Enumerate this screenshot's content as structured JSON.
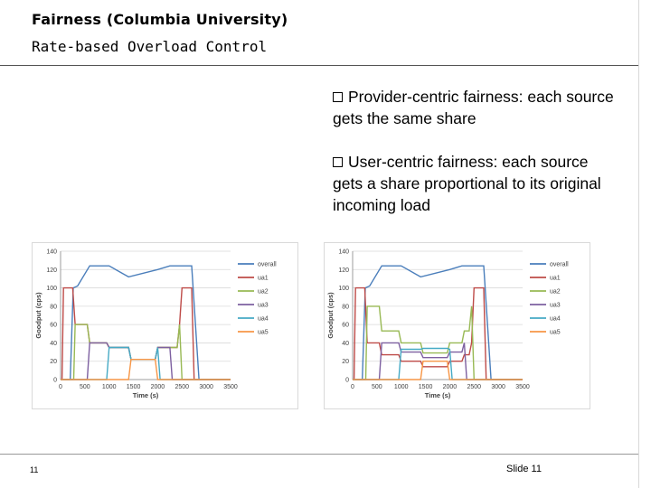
{
  "slide": {
    "title": "Fairness (Columbia University)",
    "subtitle": "Rate-based Overload Control",
    "page_number": "11",
    "slide_label": "Slide 11"
  },
  "bullets": [
    {
      "text": "Provider-centric fairness: each source gets the same share"
    },
    {
      "text": "User-centric fairness: each source gets a share proportional to its original incoming load"
    }
  ],
  "colors": {
    "overall": "#4a7ebb",
    "ua1": "#be4b48",
    "ua2": "#98b954",
    "ua3": "#7d60a0",
    "ua4": "#46aac5",
    "ua5": "#f79646"
  },
  "chart_data": [
    {
      "type": "line",
      "xlabel": "Time (s)",
      "ylabel": "Goodput (cps)",
      "xlim": [
        0,
        3500
      ],
      "ylim": [
        0,
        140
      ],
      "x_ticks": [
        "0",
        "500",
        "1000",
        "1500",
        "2000",
        "2500",
        "3000",
        "3500"
      ],
      "y_ticks": [
        "0",
        "20",
        "40",
        "60",
        "80",
        "100",
        "120",
        "140"
      ],
      "grid": true,
      "legend": "right",
      "series": [
        {
          "name": "overall",
          "color": "#4a7ebb",
          "points": [
            [
              0,
              0
            ],
            [
              200,
              0
            ],
            [
              260,
              100
            ],
            [
              350,
              102
            ],
            [
              600,
              124
            ],
            [
              1000,
              124
            ],
            [
              1400,
              112
            ],
            [
              2000,
              120
            ],
            [
              2250,
              124
            ],
            [
              2700,
              124
            ],
            [
              2850,
              0
            ],
            [
              3500,
              0
            ]
          ]
        },
        {
          "name": "ua1",
          "color": "#be4b48",
          "points": [
            [
              0,
              0
            ],
            [
              30,
              0
            ],
            [
              60,
              100
            ],
            [
              250,
              100
            ],
            [
              300,
              60
            ],
            [
              550,
              60
            ],
            [
              600,
              40
            ],
            [
              950,
              40
            ],
            [
              1000,
              35
            ],
            [
              1400,
              35
            ],
            [
              1450,
              22
            ],
            [
              1950,
              22
            ],
            [
              2000,
              35
            ],
            [
              2400,
              35
            ],
            [
              2450,
              60
            ],
            [
              2500,
              100
            ],
            [
              2700,
              100
            ],
            [
              2750,
              0
            ],
            [
              3500,
              0
            ]
          ]
        },
        {
          "name": "ua2",
          "color": "#98b954",
          "points": [
            [
              0,
              0
            ],
            [
              270,
              0
            ],
            [
              300,
              60
            ],
            [
              550,
              60
            ],
            [
              600,
              40
            ],
            [
              950,
              40
            ],
            [
              1000,
              35
            ],
            [
              1400,
              35
            ],
            [
              1450,
              22
            ],
            [
              1950,
              22
            ],
            [
              2000,
              35
            ],
            [
              2400,
              35
            ],
            [
              2450,
              60
            ],
            [
              2500,
              0
            ],
            [
              3500,
              0
            ]
          ]
        },
        {
          "name": "ua3",
          "color": "#7d60a0",
          "points": [
            [
              0,
              0
            ],
            [
              550,
              0
            ],
            [
              600,
              40
            ],
            [
              950,
              40
            ],
            [
              1000,
              35
            ],
            [
              1400,
              35
            ],
            [
              1450,
              22
            ],
            [
              1950,
              22
            ],
            [
              2000,
              35
            ],
            [
              2250,
              35
            ],
            [
              2300,
              0
            ],
            [
              3500,
              0
            ]
          ]
        },
        {
          "name": "ua4",
          "color": "#46aac5",
          "points": [
            [
              0,
              0
            ],
            [
              950,
              0
            ],
            [
              1000,
              35
            ],
            [
              1400,
              35
            ],
            [
              1450,
              22
            ],
            [
              1950,
              22
            ],
            [
              2000,
              35
            ],
            [
              2050,
              0
            ],
            [
              3500,
              0
            ]
          ]
        },
        {
          "name": "ua5",
          "color": "#f79646",
          "points": [
            [
              0,
              0
            ],
            [
              1400,
              0
            ],
            [
              1450,
              22
            ],
            [
              1950,
              22
            ],
            [
              2000,
              0
            ],
            [
              3500,
              0
            ]
          ]
        }
      ]
    },
    {
      "type": "line",
      "xlabel": "Time (s)",
      "ylabel": "Goodput (cps)",
      "xlim": [
        0,
        3500
      ],
      "ylim": [
        0,
        140
      ],
      "x_ticks": [
        "0",
        "500",
        "1000",
        "1500",
        "2000",
        "2500",
        "3000",
        "3500"
      ],
      "y_ticks": [
        "0",
        "20",
        "40",
        "60",
        "80",
        "100",
        "120",
        "140"
      ],
      "grid": true,
      "legend": "right",
      "series": [
        {
          "name": "overall",
          "color": "#4a7ebb",
          "points": [
            [
              0,
              0
            ],
            [
              200,
              0
            ],
            [
              260,
              100
            ],
            [
              350,
              102
            ],
            [
              600,
              124
            ],
            [
              1000,
              124
            ],
            [
              1400,
              112
            ],
            [
              2000,
              120
            ],
            [
              2250,
              124
            ],
            [
              2700,
              124
            ],
            [
              2850,
              0
            ],
            [
              3500,
              0
            ]
          ]
        },
        {
          "name": "ua1",
          "color": "#be4b48",
          "points": [
            [
              0,
              0
            ],
            [
              30,
              0
            ],
            [
              60,
              100
            ],
            [
              250,
              100
            ],
            [
              300,
              40
            ],
            [
              550,
              40
            ],
            [
              600,
              27
            ],
            [
              950,
              27
            ],
            [
              1000,
              20
            ],
            [
              1400,
              20
            ],
            [
              1450,
              14
            ],
            [
              1950,
              14
            ],
            [
              2000,
              20
            ],
            [
              2250,
              20
            ],
            [
              2300,
              27
            ],
            [
              2400,
              27
            ],
            [
              2450,
              40
            ],
            [
              2500,
              100
            ],
            [
              2700,
              100
            ],
            [
              2750,
              0
            ],
            [
              3500,
              0
            ]
          ]
        },
        {
          "name": "ua2",
          "color": "#98b954",
          "points": [
            [
              0,
              0
            ],
            [
              270,
              0
            ],
            [
              300,
              80
            ],
            [
              550,
              80
            ],
            [
              600,
              53
            ],
            [
              950,
              53
            ],
            [
              1000,
              40
            ],
            [
              1400,
              40
            ],
            [
              1450,
              29
            ],
            [
              1950,
              29
            ],
            [
              2000,
              40
            ],
            [
              2250,
              40
            ],
            [
              2300,
              53
            ],
            [
              2400,
              53
            ],
            [
              2450,
              80
            ],
            [
              2500,
              0
            ],
            [
              3500,
              0
            ]
          ]
        },
        {
          "name": "ua3",
          "color": "#7d60a0",
          "points": [
            [
              0,
              0
            ],
            [
              550,
              0
            ],
            [
              600,
              40
            ],
            [
              950,
              40
            ],
            [
              1000,
              30
            ],
            [
              1400,
              30
            ],
            [
              1450,
              24
            ],
            [
              1950,
              24
            ],
            [
              2000,
              30
            ],
            [
              2250,
              30
            ],
            [
              2300,
              40
            ],
            [
              2350,
              0
            ],
            [
              3500,
              0
            ]
          ]
        },
        {
          "name": "ua4",
          "color": "#46aac5",
          "points": [
            [
              0,
              0
            ],
            [
              950,
              0
            ],
            [
              1000,
              33
            ],
            [
              1400,
              33
            ],
            [
              1450,
              34
            ],
            [
              1950,
              34
            ],
            [
              2000,
              33
            ],
            [
              2050,
              0
            ],
            [
              3500,
              0
            ]
          ]
        },
        {
          "name": "ua5",
          "color": "#f79646",
          "points": [
            [
              0,
              0
            ],
            [
              1400,
              0
            ],
            [
              1450,
              20
            ],
            [
              1950,
              20
            ],
            [
              2000,
              0
            ],
            [
              3500,
              0
            ]
          ]
        }
      ]
    }
  ]
}
